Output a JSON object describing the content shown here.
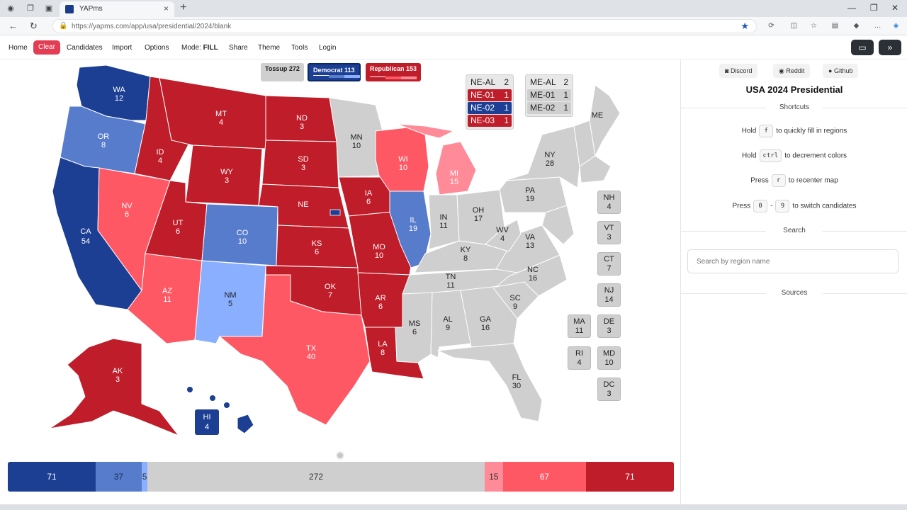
{
  "browser": {
    "tab_title": "YAPms",
    "url": "https://yapms.com/app/usa/presidential/2024/blank"
  },
  "menu": {
    "home": "Home",
    "clear": "Clear",
    "candidates": "Candidates",
    "import": "Import",
    "options": "Options",
    "mode_label": "Mode:",
    "mode_value": "FILL",
    "share": "Share",
    "theme": "Theme",
    "tools": "Tools",
    "login": "Login"
  },
  "colors": {
    "safe_dem": "#1c3f94",
    "likely_dem": "#577ccc",
    "lean_dem": "#8aafff",
    "safe_rep": "#bf1d29",
    "likely_rep": "#ff5865",
    "lean_rep": "#ff8b98",
    "tossup": "#cfcfcf"
  },
  "legend": {
    "tossup": "Tossup 272",
    "democrat": "Democrat 113",
    "republican": "Republican 153"
  },
  "states": [
    {
      "abbr": "WA",
      "ev": "12"
    },
    {
      "abbr": "OR",
      "ev": "8"
    },
    {
      "abbr": "CA",
      "ev": "54"
    },
    {
      "abbr": "NV",
      "ev": "6"
    },
    {
      "abbr": "ID",
      "ev": "4"
    },
    {
      "abbr": "MT",
      "ev": "4"
    },
    {
      "abbr": "WY",
      "ev": "3"
    },
    {
      "abbr": "UT",
      "ev": "6"
    },
    {
      "abbr": "AZ",
      "ev": "11"
    },
    {
      "abbr": "CO",
      "ev": "10"
    },
    {
      "abbr": "NM",
      "ev": "5"
    },
    {
      "abbr": "ND",
      "ev": "3"
    },
    {
      "abbr": "SD",
      "ev": "3"
    },
    {
      "abbr": "NE",
      "ev": ""
    },
    {
      "abbr": "KS",
      "ev": "6"
    },
    {
      "abbr": "OK",
      "ev": "7"
    },
    {
      "abbr": "TX",
      "ev": "40"
    },
    {
      "abbr": "MN",
      "ev": "10"
    },
    {
      "abbr": "IA",
      "ev": "6"
    },
    {
      "abbr": "MO",
      "ev": "10"
    },
    {
      "abbr": "AR",
      "ev": "6"
    },
    {
      "abbr": "LA",
      "ev": "8"
    },
    {
      "abbr": "WI",
      "ev": "10"
    },
    {
      "abbr": "IL",
      "ev": "19"
    },
    {
      "abbr": "MI",
      "ev": "15"
    },
    {
      "abbr": "IN",
      "ev": "11"
    },
    {
      "abbr": "OH",
      "ev": "17"
    },
    {
      "abbr": "KY",
      "ev": "8"
    },
    {
      "abbr": "TN",
      "ev": "11"
    },
    {
      "abbr": "MS",
      "ev": "6"
    },
    {
      "abbr": "AL",
      "ev": "9"
    },
    {
      "abbr": "GA",
      "ev": "16"
    },
    {
      "abbr": "FL",
      "ev": "30"
    },
    {
      "abbr": "SC",
      "ev": "9"
    },
    {
      "abbr": "NC",
      "ev": "16"
    },
    {
      "abbr": "VA",
      "ev": "13"
    },
    {
      "abbr": "WV",
      "ev": "4"
    },
    {
      "abbr": "PA",
      "ev": "19"
    },
    {
      "abbr": "NY",
      "ev": "28"
    },
    {
      "abbr": "ME",
      "ev": ""
    },
    {
      "abbr": "AK",
      "ev": "3"
    },
    {
      "abbr": "HI",
      "ev": "4"
    }
  ],
  "small_states": [
    {
      "abbr": "NH",
      "ev": "4"
    },
    {
      "abbr": "VT",
      "ev": "3"
    },
    {
      "abbr": "CT",
      "ev": "7"
    },
    {
      "abbr": "NJ",
      "ev": "14"
    },
    {
      "abbr": "MA",
      "ev": "11"
    },
    {
      "abbr": "DE",
      "ev": "3"
    },
    {
      "abbr": "RI",
      "ev": "4"
    },
    {
      "abbr": "MD",
      "ev": "10"
    },
    {
      "abbr": "DC",
      "ev": "3"
    }
  ],
  "ne_districts": [
    {
      "name": "NE-AL",
      "ev": "2"
    },
    {
      "name": "NE-01",
      "ev": "1"
    },
    {
      "name": "NE-02",
      "ev": "1"
    },
    {
      "name": "NE-03",
      "ev": "1"
    }
  ],
  "me_districts": [
    {
      "name": "ME-AL",
      "ev": "2"
    },
    {
      "name": "ME-01",
      "ev": "1"
    },
    {
      "name": "ME-02",
      "ev": "1"
    }
  ],
  "panel": {
    "discord": "Discord",
    "reddit": "Reddit",
    "github": "Github",
    "title": "USA 2024 Presidential",
    "shortcuts_heading": "Shortcuts",
    "hold1": "Hold",
    "key_f": "f",
    "hold1_desc": "to quickly fill in regions",
    "hold2": "Hold",
    "key_ctrl": "ctrl",
    "hold2_desc": "to decrement colors",
    "press1": "Press",
    "key_r": "r",
    "press1_desc": "to recenter map",
    "press2": "Press",
    "key_0": "0",
    "dash": "-",
    "key_9": "9",
    "press2_desc": "to switch candidates",
    "search_heading": "Search",
    "search_placeholder": "Search by region name",
    "sources_heading": "Sources"
  },
  "bottom_bar": [
    {
      "value": "71",
      "color": "#1c3f94"
    },
    {
      "value": "37",
      "color": "#577ccc"
    },
    {
      "value": "5",
      "color": "#8aafff"
    },
    {
      "value": "272",
      "color": "#cfcfcf"
    },
    {
      "value": "15",
      "color": "#ff8b98"
    },
    {
      "value": "67",
      "color": "#ff5865"
    },
    {
      "value": "71",
      "color": "#bf1d29"
    }
  ]
}
